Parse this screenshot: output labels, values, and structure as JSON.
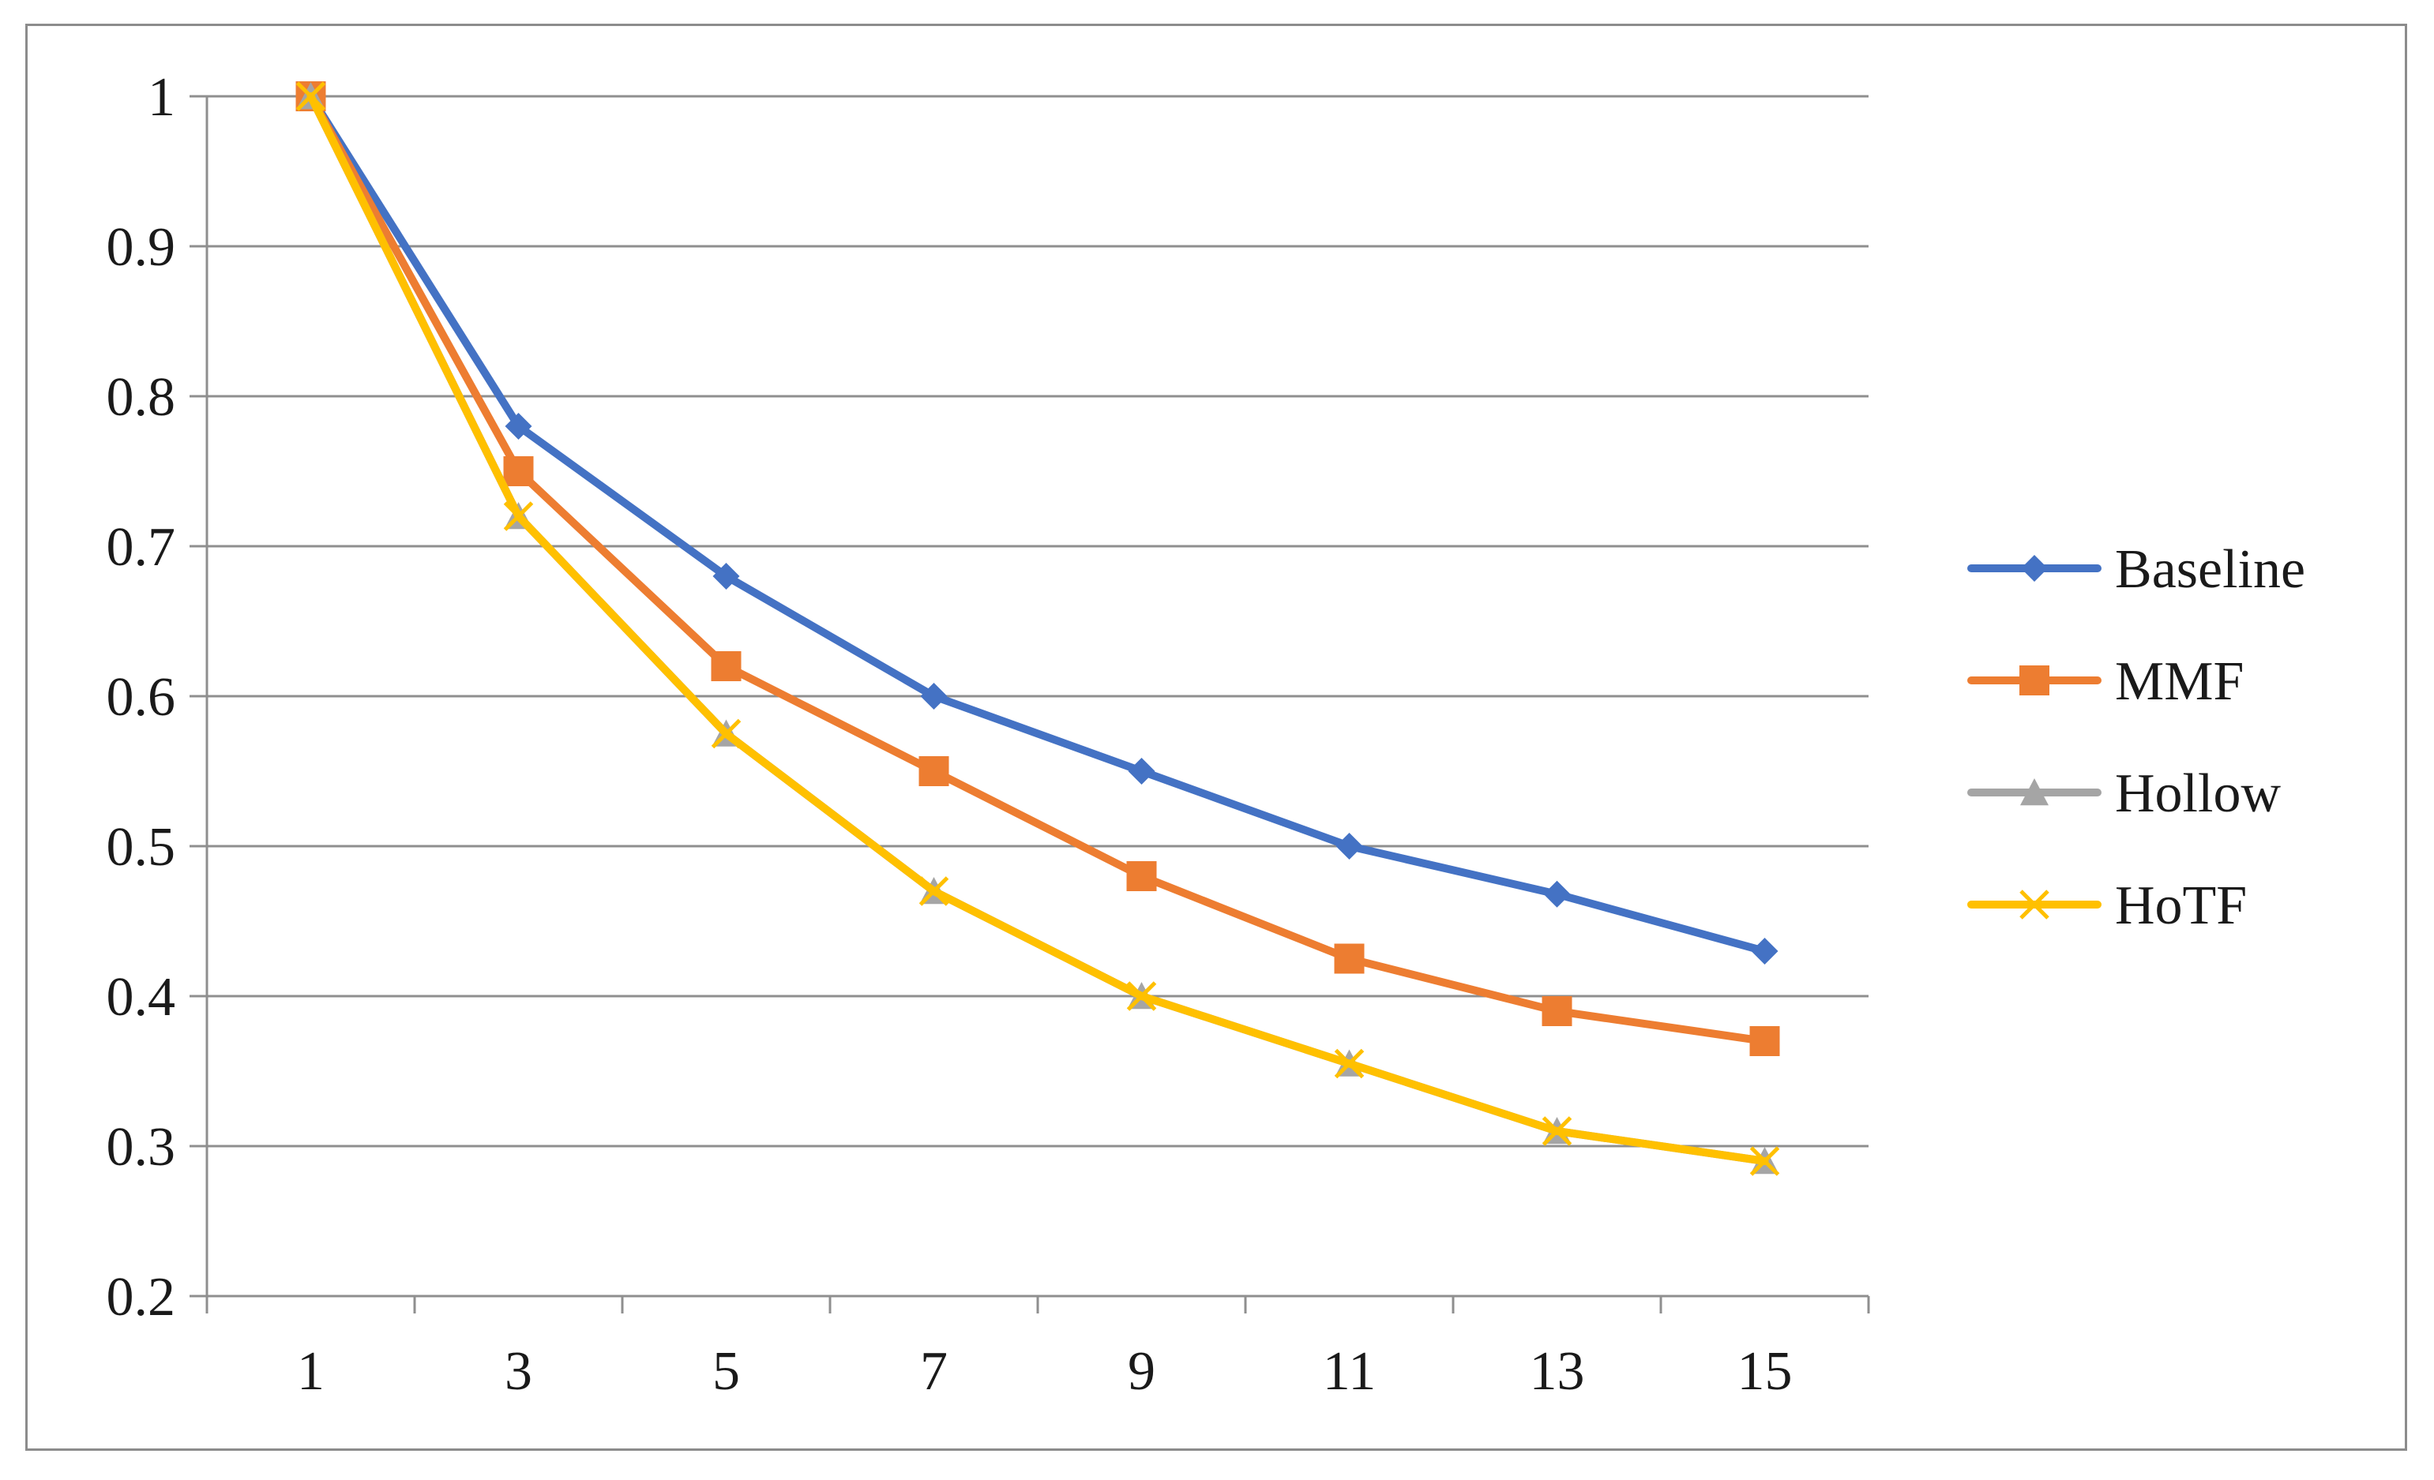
{
  "chart_data": {
    "type": "line",
    "title": "",
    "xlabel": "",
    "ylabel": "",
    "x": [
      1,
      3,
      5,
      7,
      9,
      11,
      13,
      15
    ],
    "ylim": [
      0.2,
      1
    ],
    "yticks": [
      "0.2",
      "0.3",
      "0.4",
      "0.5",
      "0.6",
      "0.7",
      "0.8",
      "0.9",
      "1"
    ],
    "xticks": [
      "1",
      "3",
      "5",
      "7",
      "9",
      "11",
      "13",
      "15"
    ],
    "grid": "horizontal",
    "legend_position": "right",
    "series": [
      {
        "name": "Baseline",
        "color": "#4472C4",
        "marker": "diamond",
        "values": [
          1.0,
          0.78,
          0.68,
          0.6,
          0.55,
          0.5,
          0.468,
          0.43
        ]
      },
      {
        "name": "MMF",
        "color": "#ED7D31",
        "marker": "square",
        "values": [
          1.0,
          0.75,
          0.62,
          0.55,
          0.48,
          0.425,
          0.39,
          0.37
        ]
      },
      {
        "name": "Hollow",
        "color": "#A5A5A5",
        "marker": "triangle",
        "values": [
          1.0,
          0.72,
          0.575,
          0.47,
          0.4,
          0.355,
          0.31,
          0.29
        ]
      },
      {
        "name": "HoTF",
        "color": "#FFC000",
        "marker": "x",
        "values": [
          1.0,
          0.72,
          0.575,
          0.47,
          0.4,
          0.355,
          0.31,
          0.29
        ]
      }
    ]
  }
}
